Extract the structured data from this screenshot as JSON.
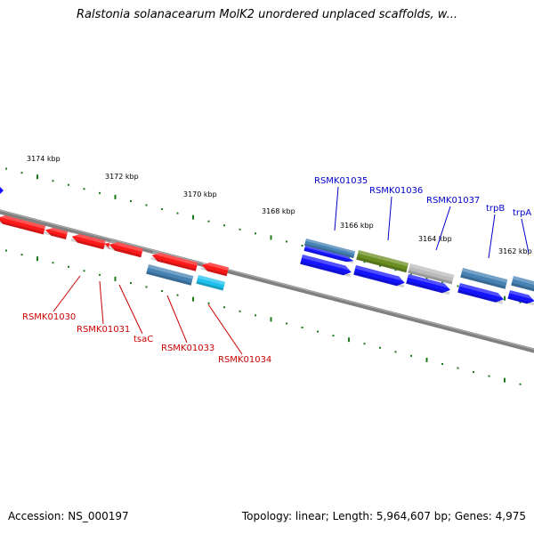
{
  "title": "Ralstonia solanacearum MolK2 unordered unplaced scaffolds, w...",
  "footer": {
    "accession": "Accession: NS_000197",
    "summary": "Topology: linear; Length: 5,964,607 bp; Genes: 4,975"
  },
  "colors": {
    "backbone": "#808080",
    "tick": "#1a7a1a",
    "red_gene": "#ff1a1a",
    "red_label": "#cc0000",
    "blue_gene": "#1414ff",
    "blue_label": "#0000cc",
    "steel": "#4682b4",
    "cyan": "#1ec0ee",
    "olive": "#6b8e23",
    "gray": "#bbbbbb"
  },
  "scale_labels": [
    "3174 kbp",
    "3172 kbp",
    "3170 kbp",
    "3168 kbp",
    "3166 kbp",
    "3164 kbp",
    "3162 kbp"
  ],
  "gene_labels_red": [
    "RSMK01030",
    "RSMK01031",
    "tsaC",
    "RSMK01033",
    "RSMK01034"
  ],
  "gene_labels_blue": [
    "RSMK01035",
    "RSMK01036",
    "RSMK01037",
    "trpB",
    "trpA"
  ]
}
